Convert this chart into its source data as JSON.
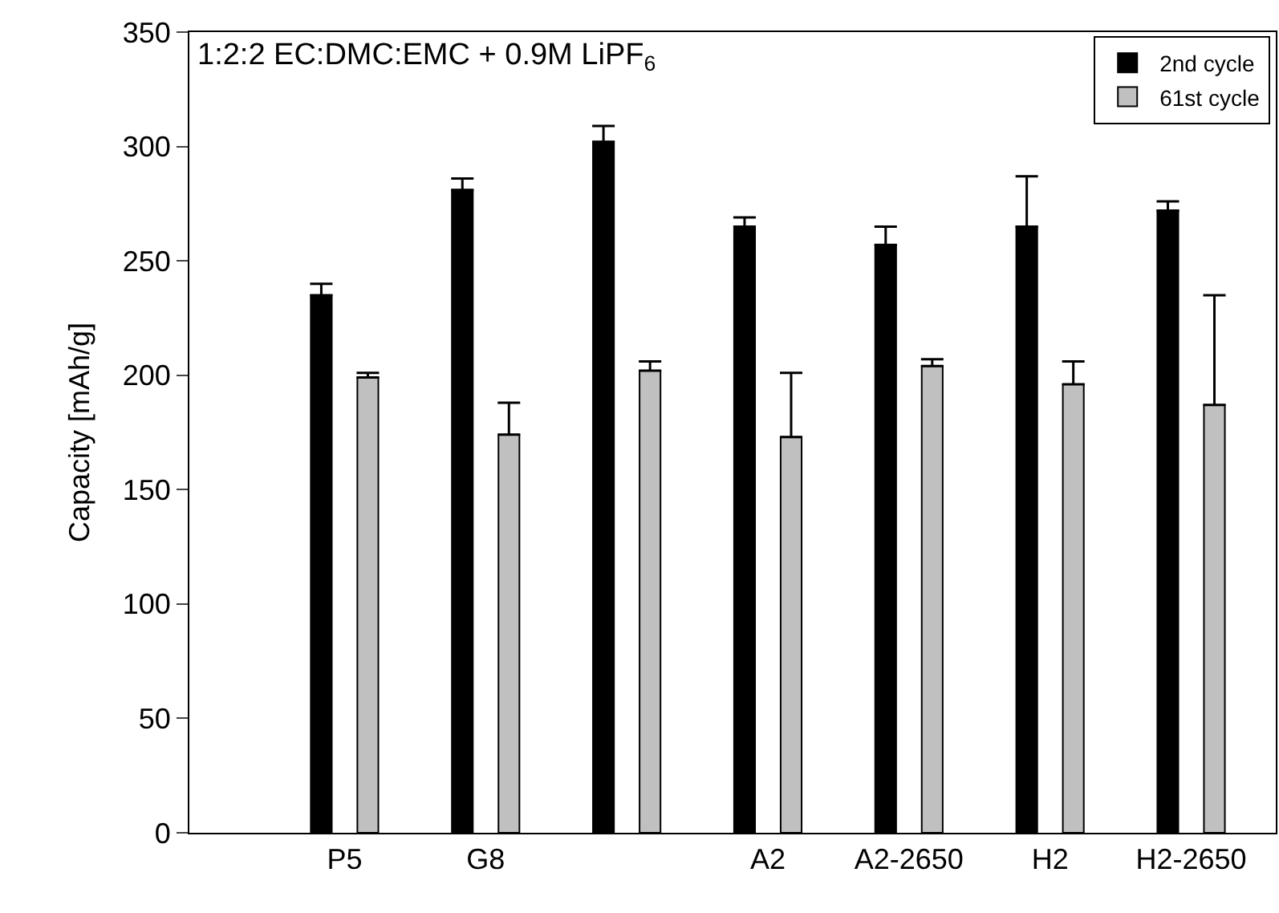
{
  "chart_data": {
    "type": "bar",
    "categories": [
      "P5",
      "G8",
      null,
      "A2",
      "A2-2650",
      "H2",
      "H2-2650"
    ],
    "ylabel": "Capacity [mAh/g]",
    "annotations": [
      "1:2:2 EC:DMC:EMC + 0.9M LiPF$_{6}$"
    ],
    "series": [
      {
        "name": "2nd cycle",
        "color": "#000000",
        "values": [
          235,
          281,
          302,
          265,
          257,
          265,
          272
        ],
        "errors": [
          [
            235,
            240
          ],
          [
            281,
            286
          ],
          [
            302,
            309
          ],
          [
            265,
            269
          ],
          [
            257,
            265
          ],
          [
            265,
            287
          ],
          [
            272,
            276
          ]
        ]
      },
      {
        "name": "61st cycle",
        "color": "#c0c0c0",
        "values": [
          199,
          174,
          202,
          173,
          204,
          196,
          187
        ],
        "errors": [
          [
            199,
            201
          ],
          [
            174,
            188
          ],
          [
            202,
            206
          ],
          [
            173,
            201
          ],
          [
            204,
            207
          ],
          [
            196,
            206
          ],
          [
            187,
            235
          ]
        ]
      }
    ],
    "ylim": [
      0,
      350
    ],
    "yticks": [
      0,
      50,
      100,
      150,
      200,
      250,
      300,
      350
    ],
    "legend": "top right"
  }
}
